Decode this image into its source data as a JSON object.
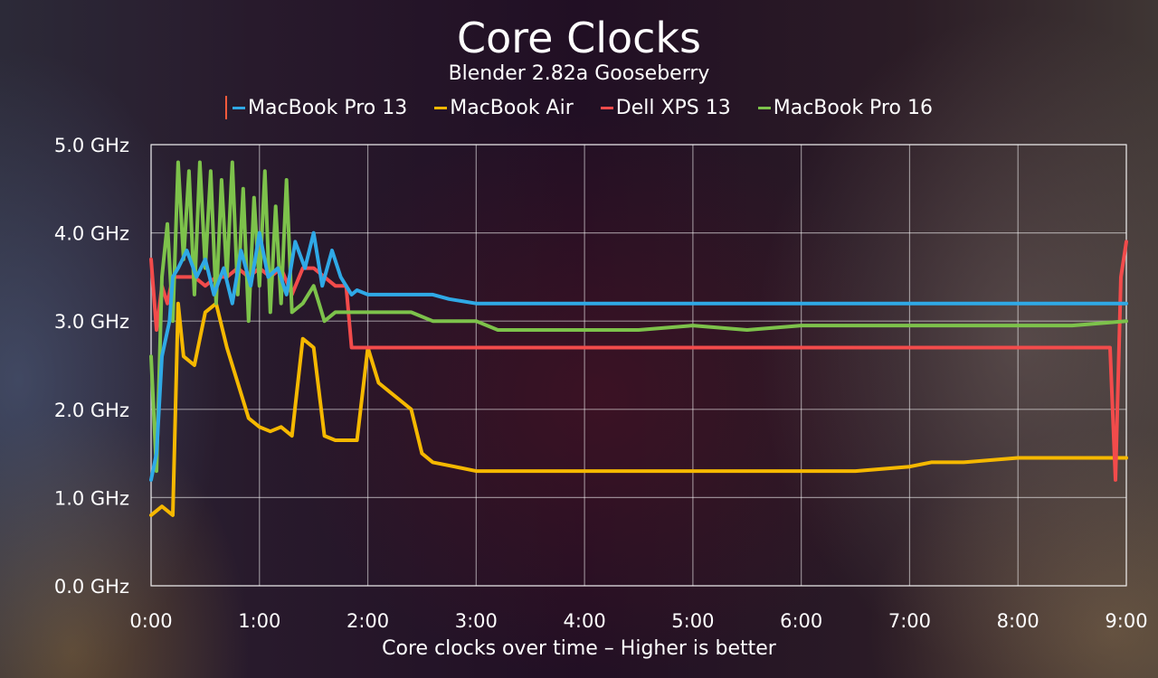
{
  "chart_data": {
    "type": "line",
    "title": "Core Clocks",
    "subtitle": "Blender 2.82a Gooseberry",
    "xlabel": "Core clocks over time – Higher is better",
    "ylabel": "",
    "x_ticks": [
      "0:00",
      "1:00",
      "2:00",
      "3:00",
      "4:00",
      "5:00",
      "6:00",
      "7:00",
      "8:00",
      "9:00"
    ],
    "y_ticks": [
      "0.0 GHz",
      "1.0 GHz",
      "2.0 GHz",
      "3.0 GHz",
      "4.0 GHz",
      "5.0 GHz"
    ],
    "xlim": [
      0,
      9
    ],
    "ylim": [
      0,
      5
    ],
    "x_unit": "minutes",
    "y_unit": "GHz",
    "grid": true,
    "legend_position": "top-center",
    "series": [
      {
        "name": "MacBook Pro 13",
        "color": "#2fa9e6",
        "x": [
          0.0,
          0.05,
          0.1,
          0.17,
          0.2,
          0.25,
          0.33,
          0.42,
          0.5,
          0.58,
          0.67,
          0.75,
          0.83,
          0.92,
          1.0,
          1.08,
          1.17,
          1.25,
          1.33,
          1.42,
          1.5,
          1.58,
          1.67,
          1.75,
          1.8,
          1.85,
          1.9,
          2.0,
          2.2,
          2.4,
          2.6,
          2.75,
          3.0,
          3.5,
          4.0,
          4.5,
          5.0,
          5.5,
          6.0,
          6.5,
          7.0,
          7.5,
          8.0,
          8.5,
          9.0
        ],
        "y": [
          1.2,
          1.5,
          2.6,
          3.0,
          3.5,
          3.6,
          3.8,
          3.5,
          3.7,
          3.3,
          3.6,
          3.2,
          3.8,
          3.4,
          4.0,
          3.5,
          3.6,
          3.3,
          3.9,
          3.6,
          4.0,
          3.4,
          3.8,
          3.5,
          3.4,
          3.3,
          3.35,
          3.3,
          3.3,
          3.3,
          3.3,
          3.25,
          3.2,
          3.2,
          3.2,
          3.2,
          3.2,
          3.2,
          3.2,
          3.2,
          3.2,
          3.2,
          3.2,
          3.2,
          3.2
        ]
      },
      {
        "name": "MacBook Air",
        "color": "#f5b800",
        "x": [
          0.0,
          0.1,
          0.2,
          0.25,
          0.3,
          0.4,
          0.5,
          0.6,
          0.7,
          0.8,
          0.9,
          1.0,
          1.1,
          1.2,
          1.3,
          1.4,
          1.5,
          1.6,
          1.7,
          1.8,
          1.9,
          2.0,
          2.1,
          2.2,
          2.3,
          2.4,
          2.5,
          2.6,
          2.8,
          3.0,
          3.5,
          4.0,
          4.5,
          5.0,
          5.5,
          6.0,
          6.5,
          7.0,
          7.2,
          7.5,
          8.0,
          8.5,
          9.0
        ],
        "y": [
          0.8,
          0.9,
          0.8,
          3.2,
          2.6,
          2.5,
          3.1,
          3.2,
          2.7,
          2.3,
          1.9,
          1.8,
          1.75,
          1.8,
          1.7,
          2.8,
          2.7,
          1.7,
          1.65,
          1.65,
          1.65,
          2.7,
          2.3,
          2.2,
          2.1,
          2.0,
          1.5,
          1.4,
          1.35,
          1.3,
          1.3,
          1.3,
          1.3,
          1.3,
          1.3,
          1.3,
          1.3,
          1.35,
          1.4,
          1.4,
          1.45,
          1.45,
          1.45
        ]
      },
      {
        "name": "Dell XPS 13",
        "color": "#f24b4b",
        "x": [
          0.0,
          0.05,
          0.1,
          0.15,
          0.2,
          0.3,
          0.4,
          0.5,
          0.6,
          0.7,
          0.8,
          0.9,
          1.0,
          1.1,
          1.2,
          1.3,
          1.4,
          1.5,
          1.6,
          1.7,
          1.8,
          1.85,
          1.9,
          2.0,
          2.5,
          3.0,
          3.5,
          4.0,
          4.5,
          5.0,
          5.5,
          6.0,
          6.5,
          7.0,
          7.5,
          8.0,
          8.5,
          8.85,
          8.9,
          8.95,
          9.0
        ],
        "y": [
          3.7,
          2.9,
          3.4,
          3.2,
          3.5,
          3.5,
          3.5,
          3.4,
          3.5,
          3.5,
          3.6,
          3.5,
          3.6,
          3.5,
          3.6,
          3.3,
          3.6,
          3.6,
          3.5,
          3.4,
          3.4,
          2.7,
          2.7,
          2.7,
          2.7,
          2.7,
          2.7,
          2.7,
          2.7,
          2.7,
          2.7,
          2.7,
          2.7,
          2.7,
          2.7,
          2.7,
          2.7,
          2.7,
          1.2,
          3.5,
          3.9
        ]
      },
      {
        "name": "MacBook Pro 16",
        "color": "#7dc24b",
        "x": [
          0.0,
          0.05,
          0.1,
          0.15,
          0.2,
          0.25,
          0.3,
          0.35,
          0.4,
          0.45,
          0.5,
          0.55,
          0.6,
          0.65,
          0.7,
          0.75,
          0.8,
          0.85,
          0.9,
          0.95,
          1.0,
          1.05,
          1.1,
          1.15,
          1.2,
          1.25,
          1.3,
          1.4,
          1.5,
          1.6,
          1.7,
          1.8,
          1.9,
          2.0,
          2.2,
          2.4,
          2.6,
          2.8,
          3.0,
          3.2,
          3.5,
          4.0,
          4.5,
          5.0,
          5.5,
          6.0,
          6.5,
          7.0,
          7.5,
          8.0,
          8.5,
          9.0
        ],
        "y": [
          2.6,
          1.3,
          3.5,
          4.1,
          3.0,
          4.8,
          3.7,
          4.7,
          3.3,
          4.8,
          3.6,
          4.7,
          3.2,
          4.6,
          3.5,
          4.8,
          3.3,
          4.5,
          3.0,
          4.4,
          3.4,
          4.7,
          3.1,
          4.3,
          3.2,
          4.6,
          3.1,
          3.2,
          3.4,
          3.0,
          3.1,
          3.1,
          3.1,
          3.1,
          3.1,
          3.1,
          3.0,
          3.0,
          3.0,
          2.9,
          2.9,
          2.9,
          2.9,
          2.95,
          2.9,
          2.95,
          2.95,
          2.95,
          2.95,
          2.95,
          2.95,
          3.0
        ]
      }
    ]
  }
}
